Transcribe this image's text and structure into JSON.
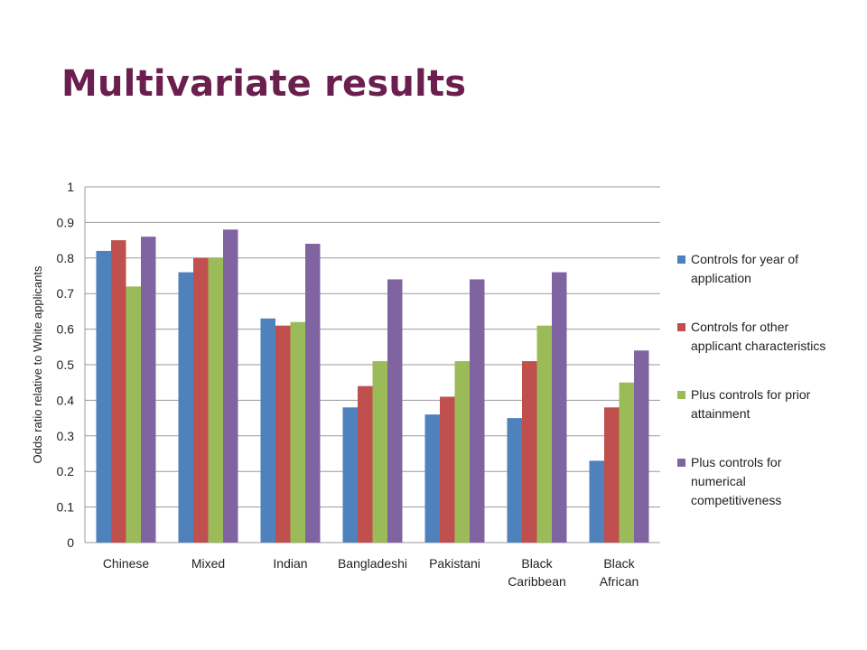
{
  "slide": {
    "title": "Multivariate results"
  },
  "chart_data": {
    "type": "bar",
    "title": "",
    "xlabel": "",
    "ylabel": "Odds ratio relative to White applicants",
    "ylim": [
      0,
      1
    ],
    "yticks": [
      "0",
      "0.1",
      "0.2",
      "0.3",
      "0.4",
      "0.5",
      "0.6",
      "0.7",
      "0.8",
      "0.9",
      "1"
    ],
    "grid": true,
    "legend_position": "right",
    "categories": [
      [
        "Chinese"
      ],
      [
        "Mixed"
      ],
      [
        "Indian"
      ],
      [
        "Bangladeshi"
      ],
      [
        "Pakistani"
      ],
      [
        "Black",
        "Caribbean"
      ],
      [
        "Black",
        "African"
      ]
    ],
    "series": [
      {
        "name": [
          "Controls for year of",
          "application"
        ],
        "color": "#4f81bd",
        "values": [
          0.82,
          0.76,
          0.63,
          0.38,
          0.36,
          0.35,
          0.23
        ]
      },
      {
        "name": [
          "Controls for other",
          "applicant characteristics"
        ],
        "color": "#c0504d",
        "values": [
          0.85,
          0.8,
          0.61,
          0.44,
          0.41,
          0.51,
          0.38
        ]
      },
      {
        "name": [
          "Plus controls for prior",
          "attainment"
        ],
        "color": "#9bbb59",
        "values": [
          0.72,
          0.8,
          0.62,
          0.51,
          0.51,
          0.61,
          0.45
        ]
      },
      {
        "name": [
          "Plus controls for",
          "numerical",
          "competitiveness"
        ],
        "color": "#8064a2",
        "values": [
          0.86,
          0.88,
          0.84,
          0.74,
          0.74,
          0.76,
          0.54
        ]
      }
    ]
  }
}
